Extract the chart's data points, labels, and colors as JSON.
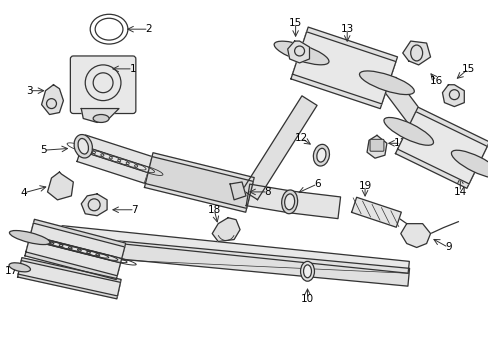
{
  "background_color": "#ffffff",
  "line_color": "#333333",
  "text_color": "#000000",
  "label_fontsize": 7.5,
  "lw": 0.9
}
